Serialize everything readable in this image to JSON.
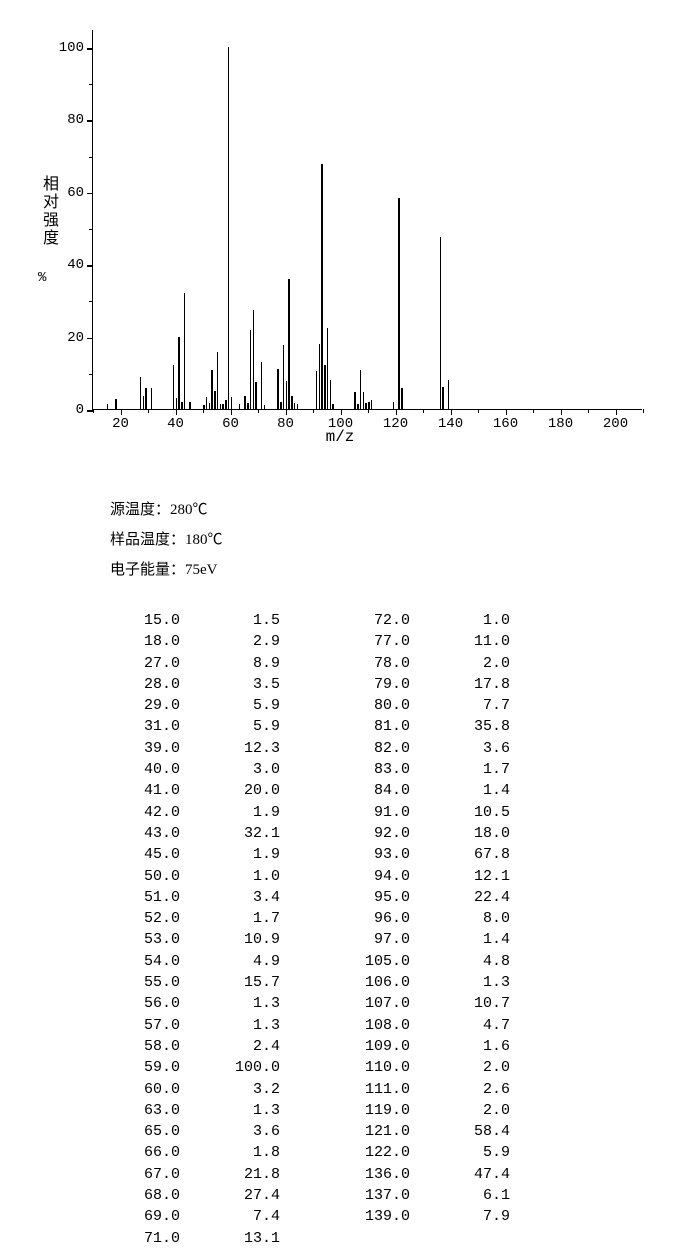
{
  "chart": {
    "type": "mass-spectrum",
    "y_axis_title": "相对强度",
    "y_axis_unit": "%",
    "x_axis_title": "m/z",
    "xlim": [
      10,
      210
    ],
    "ylim": [
      0,
      105
    ],
    "x_ticks": [
      20,
      40,
      60,
      80,
      100,
      120,
      140,
      160,
      180,
      200
    ],
    "y_ticks": [
      0,
      20,
      40,
      60,
      80,
      100
    ],
    "x_minor_step": 10,
    "y_minor_step": 10,
    "peak_color": "#000000",
    "axis_color": "#000000",
    "background_color": "#ffffff",
    "tick_fontsize": 14,
    "title_fontsize": 16
  },
  "peaks": [
    {
      "mz": 15.0,
      "intensity": 1.5
    },
    {
      "mz": 18.0,
      "intensity": 2.9
    },
    {
      "mz": 27.0,
      "intensity": 8.9
    },
    {
      "mz": 28.0,
      "intensity": 3.5
    },
    {
      "mz": 29.0,
      "intensity": 5.9
    },
    {
      "mz": 31.0,
      "intensity": 5.9
    },
    {
      "mz": 39.0,
      "intensity": 12.3
    },
    {
      "mz": 40.0,
      "intensity": 3.0
    },
    {
      "mz": 41.0,
      "intensity": 20.0
    },
    {
      "mz": 42.0,
      "intensity": 1.9
    },
    {
      "mz": 43.0,
      "intensity": 32.1
    },
    {
      "mz": 45.0,
      "intensity": 1.9
    },
    {
      "mz": 50.0,
      "intensity": 1.0
    },
    {
      "mz": 51.0,
      "intensity": 3.4
    },
    {
      "mz": 52.0,
      "intensity": 1.7
    },
    {
      "mz": 53.0,
      "intensity": 10.9
    },
    {
      "mz": 54.0,
      "intensity": 4.9
    },
    {
      "mz": 55.0,
      "intensity": 15.7
    },
    {
      "mz": 56.0,
      "intensity": 1.3
    },
    {
      "mz": 57.0,
      "intensity": 1.3
    },
    {
      "mz": 58.0,
      "intensity": 2.4
    },
    {
      "mz": 59.0,
      "intensity": 100.0
    },
    {
      "mz": 60.0,
      "intensity": 3.2
    },
    {
      "mz": 63.0,
      "intensity": 1.3
    },
    {
      "mz": 65.0,
      "intensity": 3.6
    },
    {
      "mz": 66.0,
      "intensity": 1.8
    },
    {
      "mz": 67.0,
      "intensity": 21.8
    },
    {
      "mz": 68.0,
      "intensity": 27.4
    },
    {
      "mz": 69.0,
      "intensity": 7.4
    },
    {
      "mz": 71.0,
      "intensity": 13.1
    },
    {
      "mz": 72.0,
      "intensity": 1.0
    },
    {
      "mz": 77.0,
      "intensity": 11.0
    },
    {
      "mz": 78.0,
      "intensity": 2.0
    },
    {
      "mz": 79.0,
      "intensity": 17.8
    },
    {
      "mz": 80.0,
      "intensity": 7.7
    },
    {
      "mz": 81.0,
      "intensity": 35.8
    },
    {
      "mz": 82.0,
      "intensity": 3.6
    },
    {
      "mz": 83.0,
      "intensity": 1.7
    },
    {
      "mz": 84.0,
      "intensity": 1.4
    },
    {
      "mz": 91.0,
      "intensity": 10.5
    },
    {
      "mz": 92.0,
      "intensity": 18.0
    },
    {
      "mz": 93.0,
      "intensity": 67.8
    },
    {
      "mz": 94.0,
      "intensity": 12.1
    },
    {
      "mz": 95.0,
      "intensity": 22.4
    },
    {
      "mz": 96.0,
      "intensity": 8.0
    },
    {
      "mz": 97.0,
      "intensity": 1.4
    },
    {
      "mz": 105.0,
      "intensity": 4.8
    },
    {
      "mz": 106.0,
      "intensity": 1.3
    },
    {
      "mz": 107.0,
      "intensity": 10.7
    },
    {
      "mz": 108.0,
      "intensity": 4.7
    },
    {
      "mz": 109.0,
      "intensity": 1.6
    },
    {
      "mz": 110.0,
      "intensity": 2.0
    },
    {
      "mz": 111.0,
      "intensity": 2.6
    },
    {
      "mz": 119.0,
      "intensity": 2.0
    },
    {
      "mz": 121.0,
      "intensity": 58.4
    },
    {
      "mz": 122.0,
      "intensity": 5.9
    },
    {
      "mz": 136.0,
      "intensity": 47.4
    },
    {
      "mz": 137.0,
      "intensity": 6.1
    },
    {
      "mz": 139.0,
      "intensity": 7.9
    }
  ],
  "meta": {
    "source_temp_label": "源温度：",
    "source_temp_value": "280℃",
    "sample_temp_label": "样品温度：",
    "sample_temp_value": "180℃",
    "electron_energy_label": "电子能量：",
    "electron_energy_value": "75eV"
  },
  "table": {
    "col1": [
      {
        "mz": "15.0",
        "int": "1.5"
      },
      {
        "mz": "18.0",
        "int": "2.9"
      },
      {
        "mz": "27.0",
        "int": "8.9"
      },
      {
        "mz": "28.0",
        "int": "3.5"
      },
      {
        "mz": "29.0",
        "int": "5.9"
      },
      {
        "mz": "31.0",
        "int": "5.9"
      },
      {
        "mz": "39.0",
        "int": "12.3"
      },
      {
        "mz": "40.0",
        "int": "3.0"
      },
      {
        "mz": "41.0",
        "int": "20.0"
      },
      {
        "mz": "42.0",
        "int": "1.9"
      },
      {
        "mz": "43.0",
        "int": "32.1"
      },
      {
        "mz": "45.0",
        "int": "1.9"
      },
      {
        "mz": "50.0",
        "int": "1.0"
      },
      {
        "mz": "51.0",
        "int": "3.4"
      },
      {
        "mz": "52.0",
        "int": "1.7"
      },
      {
        "mz": "53.0",
        "int": "10.9"
      },
      {
        "mz": "54.0",
        "int": "4.9"
      },
      {
        "mz": "55.0",
        "int": "15.7"
      },
      {
        "mz": "56.0",
        "int": "1.3"
      },
      {
        "mz": "57.0",
        "int": "1.3"
      },
      {
        "mz": "58.0",
        "int": "2.4"
      },
      {
        "mz": "59.0",
        "int": "100.0"
      },
      {
        "mz": "60.0",
        "int": "3.2"
      },
      {
        "mz": "63.0",
        "int": "1.3"
      },
      {
        "mz": "65.0",
        "int": "3.6"
      },
      {
        "mz": "66.0",
        "int": "1.8"
      },
      {
        "mz": "67.0",
        "int": "21.8"
      },
      {
        "mz": "68.0",
        "int": "27.4"
      },
      {
        "mz": "69.0",
        "int": "7.4"
      },
      {
        "mz": "71.0",
        "int": "13.1"
      }
    ],
    "col2": [
      {
        "mz": "72.0",
        "int": "1.0"
      },
      {
        "mz": "77.0",
        "int": "11.0"
      },
      {
        "mz": "78.0",
        "int": "2.0"
      },
      {
        "mz": "79.0",
        "int": "17.8"
      },
      {
        "mz": "80.0",
        "int": "7.7"
      },
      {
        "mz": "81.0",
        "int": "35.8"
      },
      {
        "mz": "82.0",
        "int": "3.6"
      },
      {
        "mz": "83.0",
        "int": "1.7"
      },
      {
        "mz": "84.0",
        "int": "1.4"
      },
      {
        "mz": "91.0",
        "int": "10.5"
      },
      {
        "mz": "92.0",
        "int": "18.0"
      },
      {
        "mz": "93.0",
        "int": "67.8"
      },
      {
        "mz": "94.0",
        "int": "12.1"
      },
      {
        "mz": "95.0",
        "int": "22.4"
      },
      {
        "mz": "96.0",
        "int": "8.0"
      },
      {
        "mz": "97.0",
        "int": "1.4"
      },
      {
        "mz": "105.0",
        "int": "4.8"
      },
      {
        "mz": "106.0",
        "int": "1.3"
      },
      {
        "mz": "107.0",
        "int": "10.7"
      },
      {
        "mz": "108.0",
        "int": "4.7"
      },
      {
        "mz": "109.0",
        "int": "1.6"
      },
      {
        "mz": "110.0",
        "int": "2.0"
      },
      {
        "mz": "111.0",
        "int": "2.6"
      },
      {
        "mz": "119.0",
        "int": "2.0"
      },
      {
        "mz": "121.0",
        "int": "58.4"
      },
      {
        "mz": "122.0",
        "int": "5.9"
      },
      {
        "mz": "136.0",
        "int": "47.4"
      },
      {
        "mz": "137.0",
        "int": "6.1"
      },
      {
        "mz": "139.0",
        "int": "7.9"
      }
    ]
  }
}
